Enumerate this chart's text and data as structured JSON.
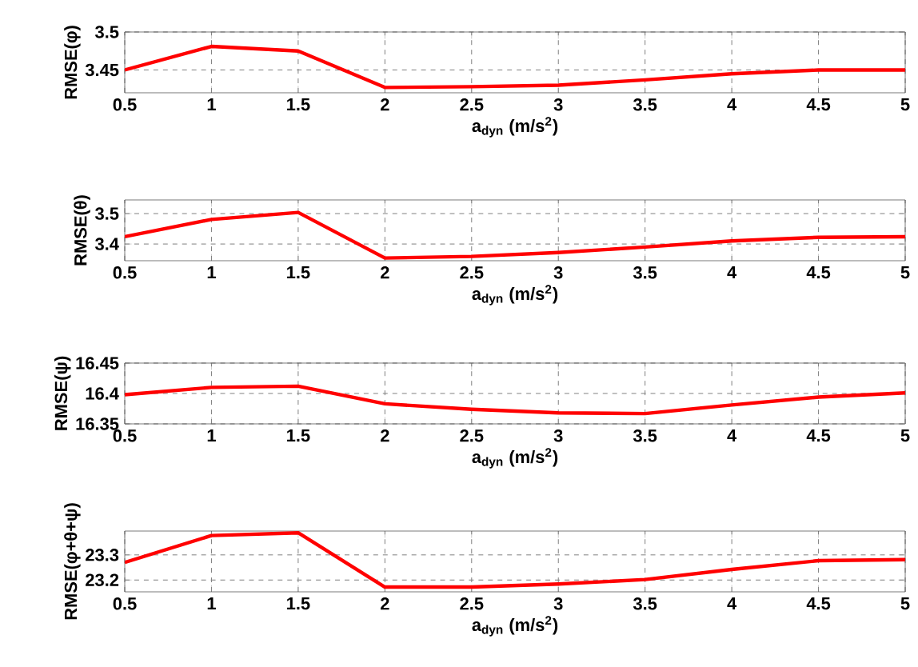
{
  "chart_data": [
    {
      "type": "line",
      "xlabel": "a$_{dyn}$ (m/s$^{2}$)",
      "ylabel": "RMSE(φ)",
      "x": [
        0.5,
        1,
        1.5,
        2,
        2.5,
        3,
        3.5,
        4,
        4.5,
        5
      ],
      "values": [
        3.45,
        3.481,
        3.475,
        3.427,
        3.428,
        3.43,
        3.437,
        3.445,
        3.45,
        3.45
      ],
      "color": "#ff0000",
      "xlim": [
        0.5,
        5
      ],
      "ylim": [
        3.42,
        3.5
      ],
      "xticks": [
        0.5,
        1,
        1.5,
        2,
        2.5,
        3,
        3.5,
        4,
        4.5,
        5
      ],
      "yticks": [
        3.45,
        3.5
      ],
      "grid": true
    },
    {
      "type": "line",
      "xlabel": "a$_{dyn}$ (m/s$^{2}$)",
      "ylabel": "RMSE(θ)",
      "x": [
        0.5,
        1,
        1.5,
        2,
        2.5,
        3,
        3.5,
        4,
        4.5,
        5
      ],
      "values": [
        3.424,
        3.481,
        3.504,
        3.354,
        3.359,
        3.372,
        3.39,
        3.41,
        3.422,
        3.424
      ],
      "color": "#ff0000",
      "xlim": [
        0.5,
        5
      ],
      "ylim": [
        3.345,
        3.545
      ],
      "xticks": [
        0.5,
        1,
        1.5,
        2,
        2.5,
        3,
        3.5,
        4,
        4.5,
        5
      ],
      "yticks": [
        3.4,
        3.5
      ],
      "grid": true
    },
    {
      "type": "line",
      "xlabel": "a$_{dyn}$ (m/s$^{2}$)",
      "ylabel": "RMSE(ψ)",
      "x": [
        0.5,
        1,
        1.5,
        2,
        2.5,
        3,
        3.5,
        4,
        4.5,
        5
      ],
      "values": [
        16.398,
        16.41,
        16.412,
        16.383,
        16.374,
        16.368,
        16.367,
        16.381,
        16.394,
        16.401
      ],
      "color": "#ff0000",
      "xlim": [
        0.5,
        5
      ],
      "ylim": [
        16.35,
        16.45
      ],
      "xticks": [
        0.5,
        1,
        1.5,
        2,
        2.5,
        3,
        3.5,
        4,
        4.5,
        5
      ],
      "yticks": [
        16.35,
        16.4,
        16.45
      ],
      "grid": true
    },
    {
      "type": "line",
      "xlabel": "a$_{dyn}$ (m/s$^{2}$)",
      "ylabel": "RMSE(φ+θ+ψ)",
      "x": [
        0.5,
        1,
        1.5,
        2,
        2.5,
        3,
        3.5,
        4,
        4.5,
        5
      ],
      "values": [
        23.27,
        23.377,
        23.388,
        23.172,
        23.172,
        23.184,
        23.202,
        23.242,
        23.277,
        23.281
      ],
      "color": "#ff0000",
      "xlim": [
        0.5,
        5
      ],
      "ylim": [
        23.153,
        23.395
      ],
      "xticks": [
        0.5,
        1,
        1.5,
        2,
        2.5,
        3,
        3.5,
        4,
        4.5,
        5
      ],
      "yticks": [
        23.2,
        23.3
      ],
      "grid": true
    }
  ]
}
